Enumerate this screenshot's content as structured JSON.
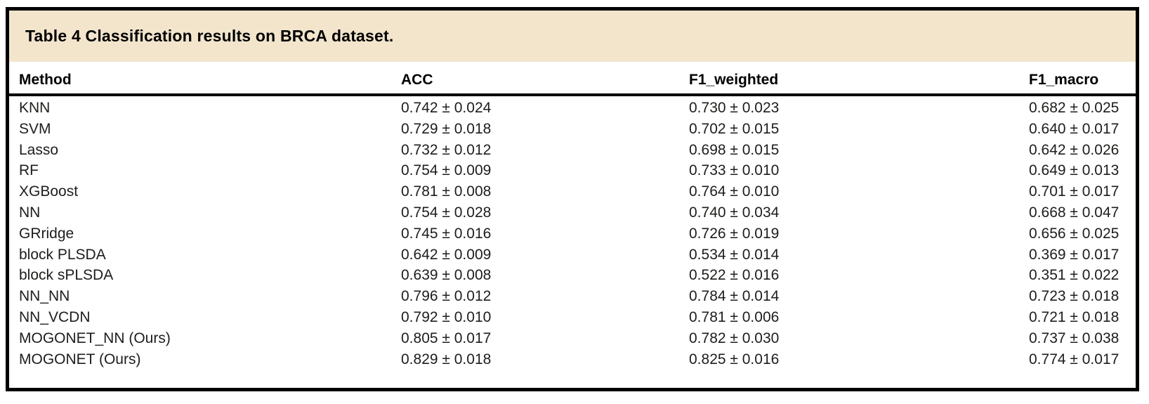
{
  "colors": {
    "band_background": "#f2e5cc",
    "border": "#000000",
    "text": "#1d1d1b"
  },
  "table": {
    "title": "Table 4 Classification results on BRCA dataset.",
    "columns": [
      "Method",
      "ACC",
      "F1_weighted",
      "F1_macro"
    ],
    "rows": [
      {
        "method": "KNN",
        "acc": "0.742 ± 0.024",
        "f1_weighted": "0.730 ± 0.023",
        "f1_macro": "0.682 ± 0.025"
      },
      {
        "method": "SVM",
        "acc": "0.729 ± 0.018",
        "f1_weighted": "0.702 ± 0.015",
        "f1_macro": "0.640 ± 0.017"
      },
      {
        "method": "Lasso",
        "acc": "0.732 ± 0.012",
        "f1_weighted": "0.698 ± 0.015",
        "f1_macro": "0.642 ± 0.026"
      },
      {
        "method": "RF",
        "acc": "0.754 ± 0.009",
        "f1_weighted": "0.733 ± 0.010",
        "f1_macro": "0.649 ± 0.013"
      },
      {
        "method": "XGBoost",
        "acc": "0.781 ± 0.008",
        "f1_weighted": "0.764 ± 0.010",
        "f1_macro": "0.701 ± 0.017"
      },
      {
        "method": "NN",
        "acc": "0.754 ± 0.028",
        "f1_weighted": "0.740 ± 0.034",
        "f1_macro": "0.668 ± 0.047"
      },
      {
        "method": "GRridge",
        "acc": "0.745 ± 0.016",
        "f1_weighted": "0.726 ± 0.019",
        "f1_macro": "0.656 ± 0.025"
      },
      {
        "method": "block PLSDA",
        "acc": "0.642 ± 0.009",
        "f1_weighted": "0.534 ± 0.014",
        "f1_macro": "0.369 ± 0.017"
      },
      {
        "method": "block sPLSDA",
        "acc": "0.639 ± 0.008",
        "f1_weighted": "0.522 ± 0.016",
        "f1_macro": "0.351 ± 0.022"
      },
      {
        "method": "NN_NN",
        "acc": "0.796 ± 0.012",
        "f1_weighted": "0.784 ± 0.014",
        "f1_macro": "0.723 ± 0.018"
      },
      {
        "method": "NN_VCDN",
        "acc": "0.792 ± 0.010",
        "f1_weighted": "0.781 ± 0.006",
        "f1_macro": "0.721 ± 0.018"
      },
      {
        "method": "MOGONET_NN (Ours)",
        "acc": "0.805 ± 0.017",
        "f1_weighted": "0.782 ± 0.030",
        "f1_macro": "0.737 ± 0.038"
      },
      {
        "method": "MOGONET (Ours)",
        "acc": "0.829 ± 0.018",
        "f1_weighted": "0.825 ± 0.016",
        "f1_macro": "0.774 ± 0.017"
      }
    ]
  }
}
